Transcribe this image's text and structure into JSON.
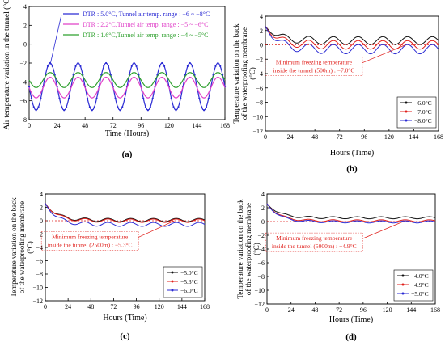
{
  "chart_data": [
    {
      "type": "line",
      "panel_label": "(a)",
      "title": "",
      "xlabel": "Time (Hours)",
      "ylabel": "Air temperature variation in the tunnel (°C)",
      "xlim": [
        0,
        168
      ],
      "ylim": [
        -8,
        4
      ],
      "xticks": [
        0,
        24,
        48,
        72,
        96,
        120,
        144,
        168
      ],
      "yticks": [
        -8,
        -6,
        -4,
        -2,
        0,
        2,
        4
      ],
      "grid": false,
      "legend_placement": "top-left",
      "series": [
        {
          "name": "DTR : 5.0°C, Tunnel air temp. range : −6 ~ −8°C",
          "color": "#2b2bd4",
          "marker": "circle",
          "amplitude": 2.5,
          "mean": -4.5,
          "period": 24,
          "peak_hour": 18,
          "range": [
            -7.0,
            -2.0
          ]
        },
        {
          "name": "DTR : 2.2°C,Tunnel air temp. range : −5 ~ −6°C",
          "color": "#e040c8",
          "marker": "none",
          "amplitude": 1.1,
          "mean": -4.6,
          "period": 24,
          "peak_hour": 18,
          "range": [
            -5.7,
            -3.5
          ]
        },
        {
          "name": "DTR : 1.6°C,Tunnel air temp. range : −4 ~ −5°C",
          "color": "#2ea02e",
          "marker": "none",
          "amplitude": 0.8,
          "mean": -3.8,
          "period": 24,
          "peak_hour": 18,
          "range": [
            -4.6,
            -3.0
          ]
        }
      ]
    },
    {
      "type": "line",
      "panel_label": "(b)",
      "title": "",
      "xlabel": "Hours (Time)",
      "ylabel": "Temperature variation on the back of the waterproofing membrane (°C)",
      "xlim": [
        0,
        168
      ],
      "ylim": [
        -12,
        4
      ],
      "xticks": [
        0,
        24,
        48,
        72,
        96,
        120,
        144,
        168
      ],
      "yticks": [
        -12,
        -10,
        -8,
        -6,
        -4,
        -2,
        0,
        2,
        4
      ],
      "grid": false,
      "legend_placement": "bottom-right",
      "annotation": "Minimum freezing temperature inside the tunnel (500m) : −7.0°C",
      "reference_line": 0,
      "series": [
        {
          "name": "−6.0°C",
          "color": "#111111",
          "start": 2.6,
          "settle": 0.6,
          "amp": 0.55,
          "phase_hour": 18
        },
        {
          "name": "−7.0°C",
          "color": "#e0201c",
          "start": 2.6,
          "settle": 0.0,
          "amp": 0.6,
          "phase_hour": 18
        },
        {
          "name": "−8.0°C",
          "color": "#2b2bd4",
          "start": 2.6,
          "settle": -0.6,
          "amp": 0.65,
          "phase_hour": 18
        }
      ]
    },
    {
      "type": "line",
      "panel_label": "(c)",
      "title": "",
      "xlabel": "Hours (Time)",
      "ylabel": "Temperature variation on the back of the waterproofing membrane (°C)",
      "xlim": [
        0,
        168
      ],
      "ylim": [
        -12,
        4
      ],
      "xticks": [
        0,
        24,
        48,
        72,
        96,
        120,
        144,
        168
      ],
      "yticks": [
        -12,
        -10,
        -8,
        -6,
        -4,
        -2,
        0,
        2,
        4
      ],
      "grid": false,
      "legend_placement": "bottom-right",
      "annotation": "Minimum freezing temperature inside the tunnel (2500m) : −5.3°C",
      "reference_line": 0,
      "series": [
        {
          "name": "−5.0°C",
          "color": "#111111",
          "start": 2.6,
          "settle": 0.1,
          "amp": 0.25,
          "phase_hour": 18
        },
        {
          "name": "−5.3°C",
          "color": "#e0201c",
          "start": 2.6,
          "settle": 0.0,
          "amp": 0.25,
          "phase_hour": 18
        },
        {
          "name": "−6.0°C",
          "color": "#2b2bd4",
          "start": 2.6,
          "settle": -0.55,
          "amp": 0.3,
          "phase_hour": 18
        }
      ]
    },
    {
      "type": "line",
      "panel_label": "(d)",
      "title": "",
      "xlabel": "Hours (Time)",
      "ylabel": "Temperature variation on the back of the waterproofing membrane (°C)",
      "xlim": [
        0,
        168
      ],
      "ylim": [
        -12,
        4
      ],
      "xticks": [
        0,
        24,
        48,
        72,
        96,
        120,
        144,
        168
      ],
      "yticks": [
        -12,
        -10,
        -8,
        -6,
        -4,
        -2,
        0,
        2,
        4
      ],
      "grid": false,
      "legend_placement": "bottom-right",
      "annotation": "Minimum freezing temperature inside the tunnel (5000m) : −4.9°C",
      "reference_line": 0,
      "series": [
        {
          "name": "−4.0°C",
          "color": "#111111",
          "start": 2.6,
          "settle": 0.55,
          "amp": 0.15,
          "phase_hour": 18
        },
        {
          "name": "−4.9°C",
          "color": "#e0201c",
          "start": 2.6,
          "settle": 0.1,
          "amp": 0.15,
          "phase_hour": 18
        },
        {
          "name": "−5.0°C",
          "color": "#2b2bd4",
          "start": 2.6,
          "settle": -0.05,
          "amp": 0.15,
          "phase_hour": 18
        }
      ]
    }
  ]
}
